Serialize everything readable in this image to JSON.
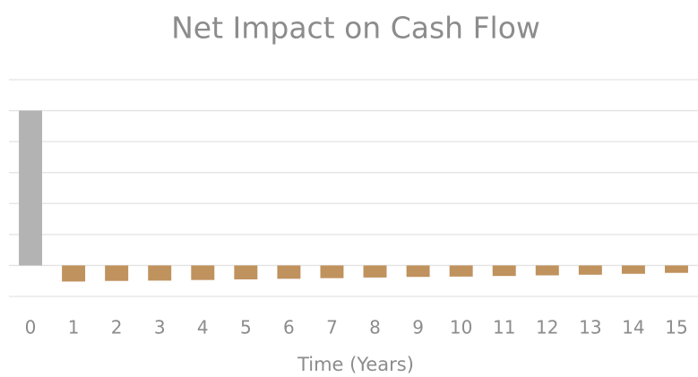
{
  "chart_data": {
    "type": "bar",
    "title": "Net Impact on Cash Flow",
    "x_label": "Time (Years)",
    "categories": [
      "0",
      "1",
      "2",
      "3",
      "4",
      "5",
      "6",
      "7",
      "8",
      "9",
      "10",
      "11",
      "12",
      "13",
      "14",
      "15"
    ],
    "values": [
      5,
      -0.52,
      -0.5,
      -0.49,
      -0.47,
      -0.45,
      -0.43,
      -0.41,
      -0.39,
      -0.37,
      -0.36,
      -0.34,
      -0.32,
      -0.3,
      -0.27,
      -0.24
    ],
    "colors": [
      "#b3b3b3",
      "#c0925e",
      "#c0925e",
      "#c0925e",
      "#c0925e",
      "#c0925e",
      "#c0925e",
      "#c0925e",
      "#c0925e",
      "#c0925e",
      "#c0925e",
      "#c0925e",
      "#c0925e",
      "#c0925e",
      "#c0925e",
      "#c0925e"
    ],
    "ylim": [
      -1,
      6
    ],
    "yticks": [
      -1,
      0,
      1,
      2,
      3,
      4,
      5,
      6
    ],
    "grid": true
  }
}
